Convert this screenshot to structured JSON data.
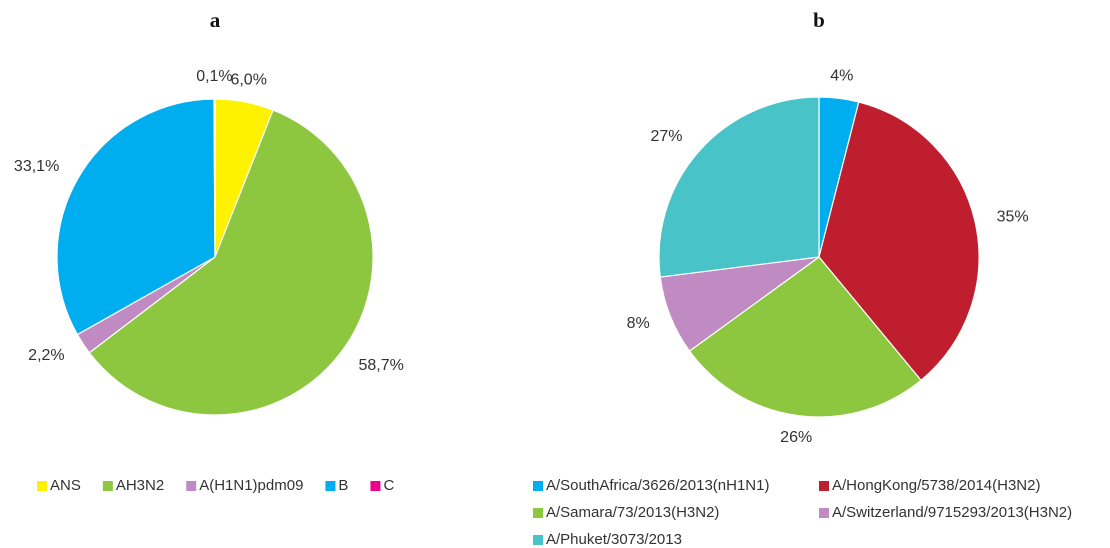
{
  "chart_data": [
    {
      "type": "pie",
      "title": "a",
      "categories": [
        "ANS",
        "AH3N2",
        "A(H1N1)pdm09",
        "B",
        "C"
      ],
      "values": [
        6.0,
        58.7,
        2.2,
        33.1,
        0.1
      ],
      "value_labels": [
        "6,0%",
        "58,7%",
        "2,2%",
        "33,1%",
        "0,1%"
      ],
      "colors": [
        "#fff200",
        "#8dc63f",
        "#bf8bc2",
        "#00aeef",
        "#ec008c"
      ]
    },
    {
      "type": "pie",
      "title": "b",
      "categories": [
        "A/SouthAfrica/3626/2013(nH1N1)",
        "A/HongKong/5738/2014(H3N2)",
        "A/Samara/73/2013(H3N2)",
        "A/Switzerland/9715293/2013(H3N2)",
        "A/Phuket/3073/2013"
      ],
      "values": [
        4,
        35,
        26,
        8,
        27
      ],
      "value_labels": [
        "4%",
        "35%",
        "26%",
        "8%",
        "27%"
      ],
      "colors": [
        "#00aeef",
        "#be1e2d",
        "#8dc63f",
        "#bf8bc2",
        "#48c3c8"
      ]
    }
  ]
}
